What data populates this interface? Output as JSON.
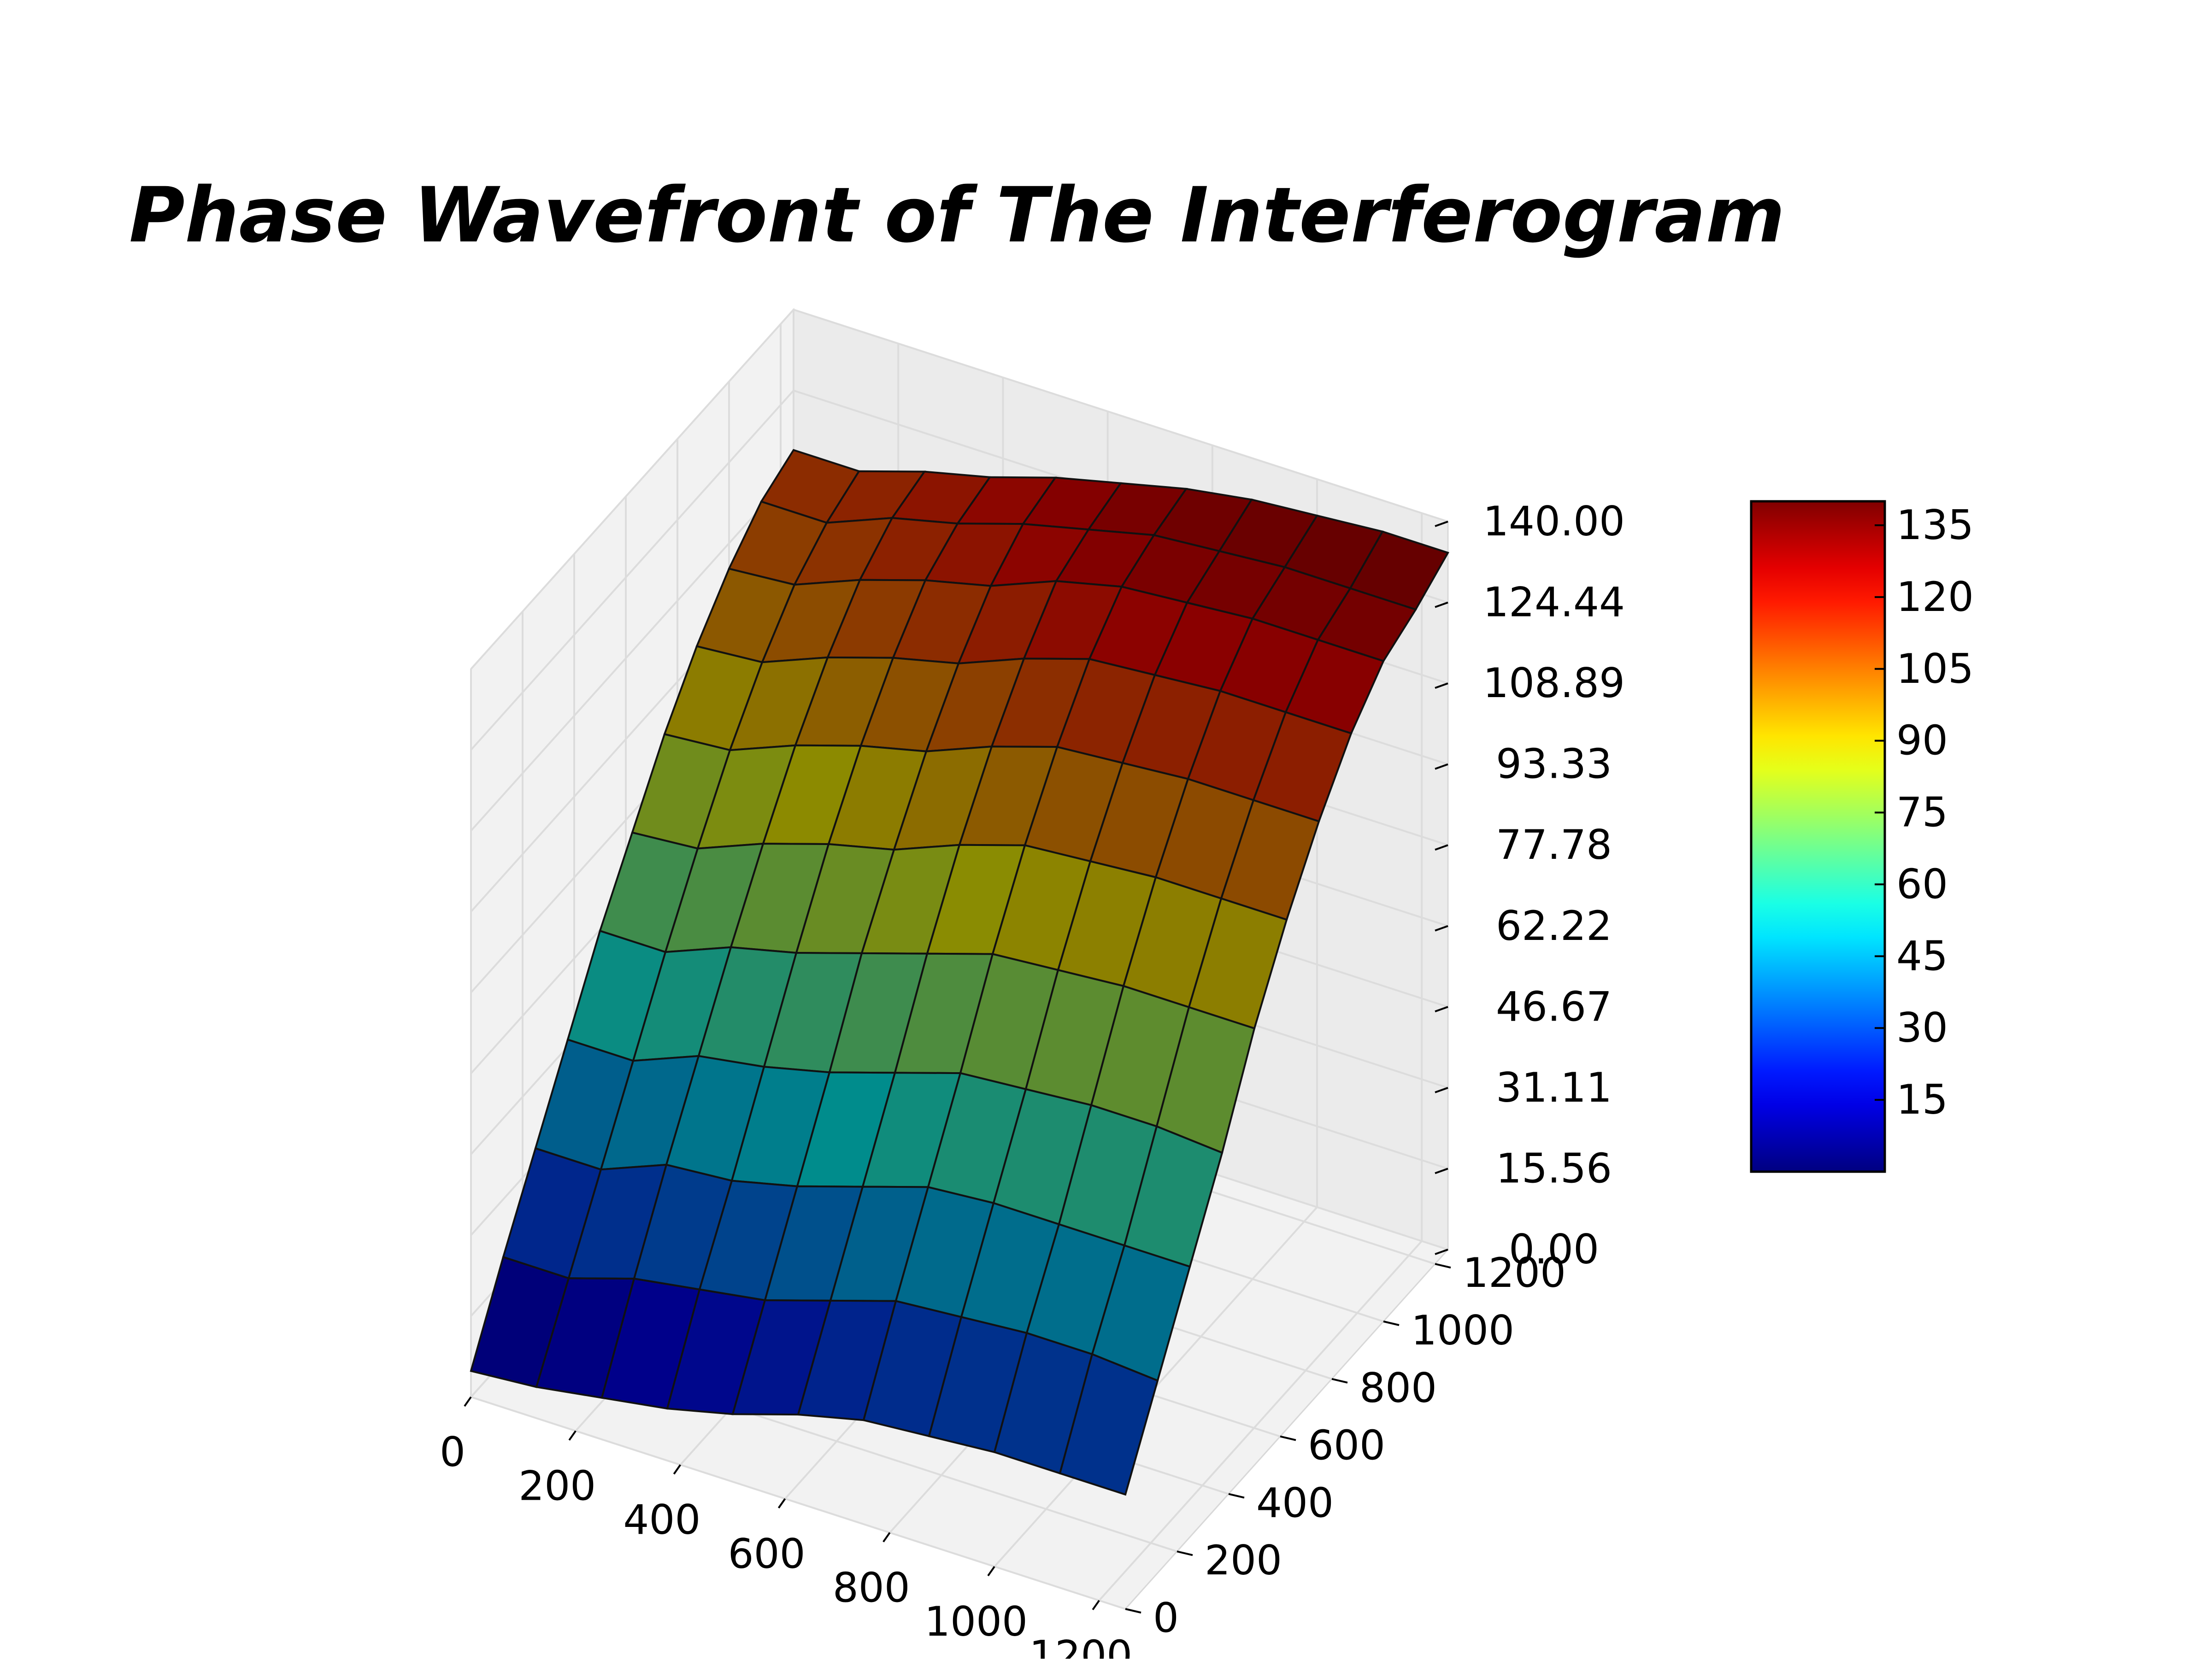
{
  "chart_data": {
    "type": "surface",
    "title": "Phase Wavefront of The Interferogram",
    "xlabel": "",
    "ylabel": "",
    "zlabel": "",
    "x_ticks": [
      "0",
      "200",
      "400",
      "600",
      "800",
      "1000",
      "1200"
    ],
    "y_ticks": [
      "0",
      "200",
      "400",
      "600",
      "800",
      "1000",
      "1200"
    ],
    "z_ticks": [
      "0.00",
      "15.56",
      "31.11",
      "46.67",
      "62.22",
      "77.78",
      "93.33",
      "108.89",
      "124.44",
      "140.00"
    ],
    "xlim": [
      0,
      1250
    ],
    "ylim": [
      0,
      1250
    ],
    "zlim": [
      0,
      140
    ],
    "colormap": "jet",
    "colorbar": {
      "ticks": [
        "15",
        "30",
        "45",
        "60",
        "75",
        "90",
        "105",
        "120",
        "135"
      ],
      "range": [
        0,
        140
      ]
    },
    "surface": {
      "x": [
        0,
        125,
        250,
        375,
        500,
        625,
        750,
        875,
        1000,
        1125,
        1250
      ],
      "y": [
        0,
        125,
        250,
        375,
        500,
        625,
        750,
        875,
        1000,
        1125,
        1250
      ],
      "z": [
        [
          5,
          6,
          8,
          10,
          13,
          17,
          20,
          21,
          22,
          22,
          22
        ],
        [
          20,
          20,
          24,
          26,
          28,
          32,
          36,
          37,
          38,
          38,
          37
        ],
        [
          34,
          34,
          39,
          40,
          43,
          47,
          51,
          52,
          52,
          52,
          52
        ],
        [
          48,
          48,
          53,
          55,
          58,
          62,
          66,
          67,
          68,
          68,
          67
        ],
        [
          62,
          62,
          67,
          70,
          74,
          78,
          82,
          83,
          84,
          84,
          84
        ],
        [
          74,
          75,
          80,
          84,
          87,
          92,
          96,
          97,
          98,
          98,
          98
        ],
        [
          86,
          87,
          92,
          96,
          99,
          104,
          108,
          109,
          110,
          110,
          110
        ],
        [
          96,
          97,
          102,
          106,
          109,
          114,
          118,
          119,
          120,
          120,
          120
        ],
        [
          104,
          105,
          110,
          114,
          117,
          122,
          125,
          126,
          127,
          127,
          127
        ],
        [
          110,
          110,
          115,
          118,
          122,
          125,
          128,
          129,
          130,
          130,
          130
        ],
        [
          113,
          113,
          117,
          120,
          124,
          127,
          130,
          132,
          133,
          134,
          134
        ]
      ]
    }
  }
}
